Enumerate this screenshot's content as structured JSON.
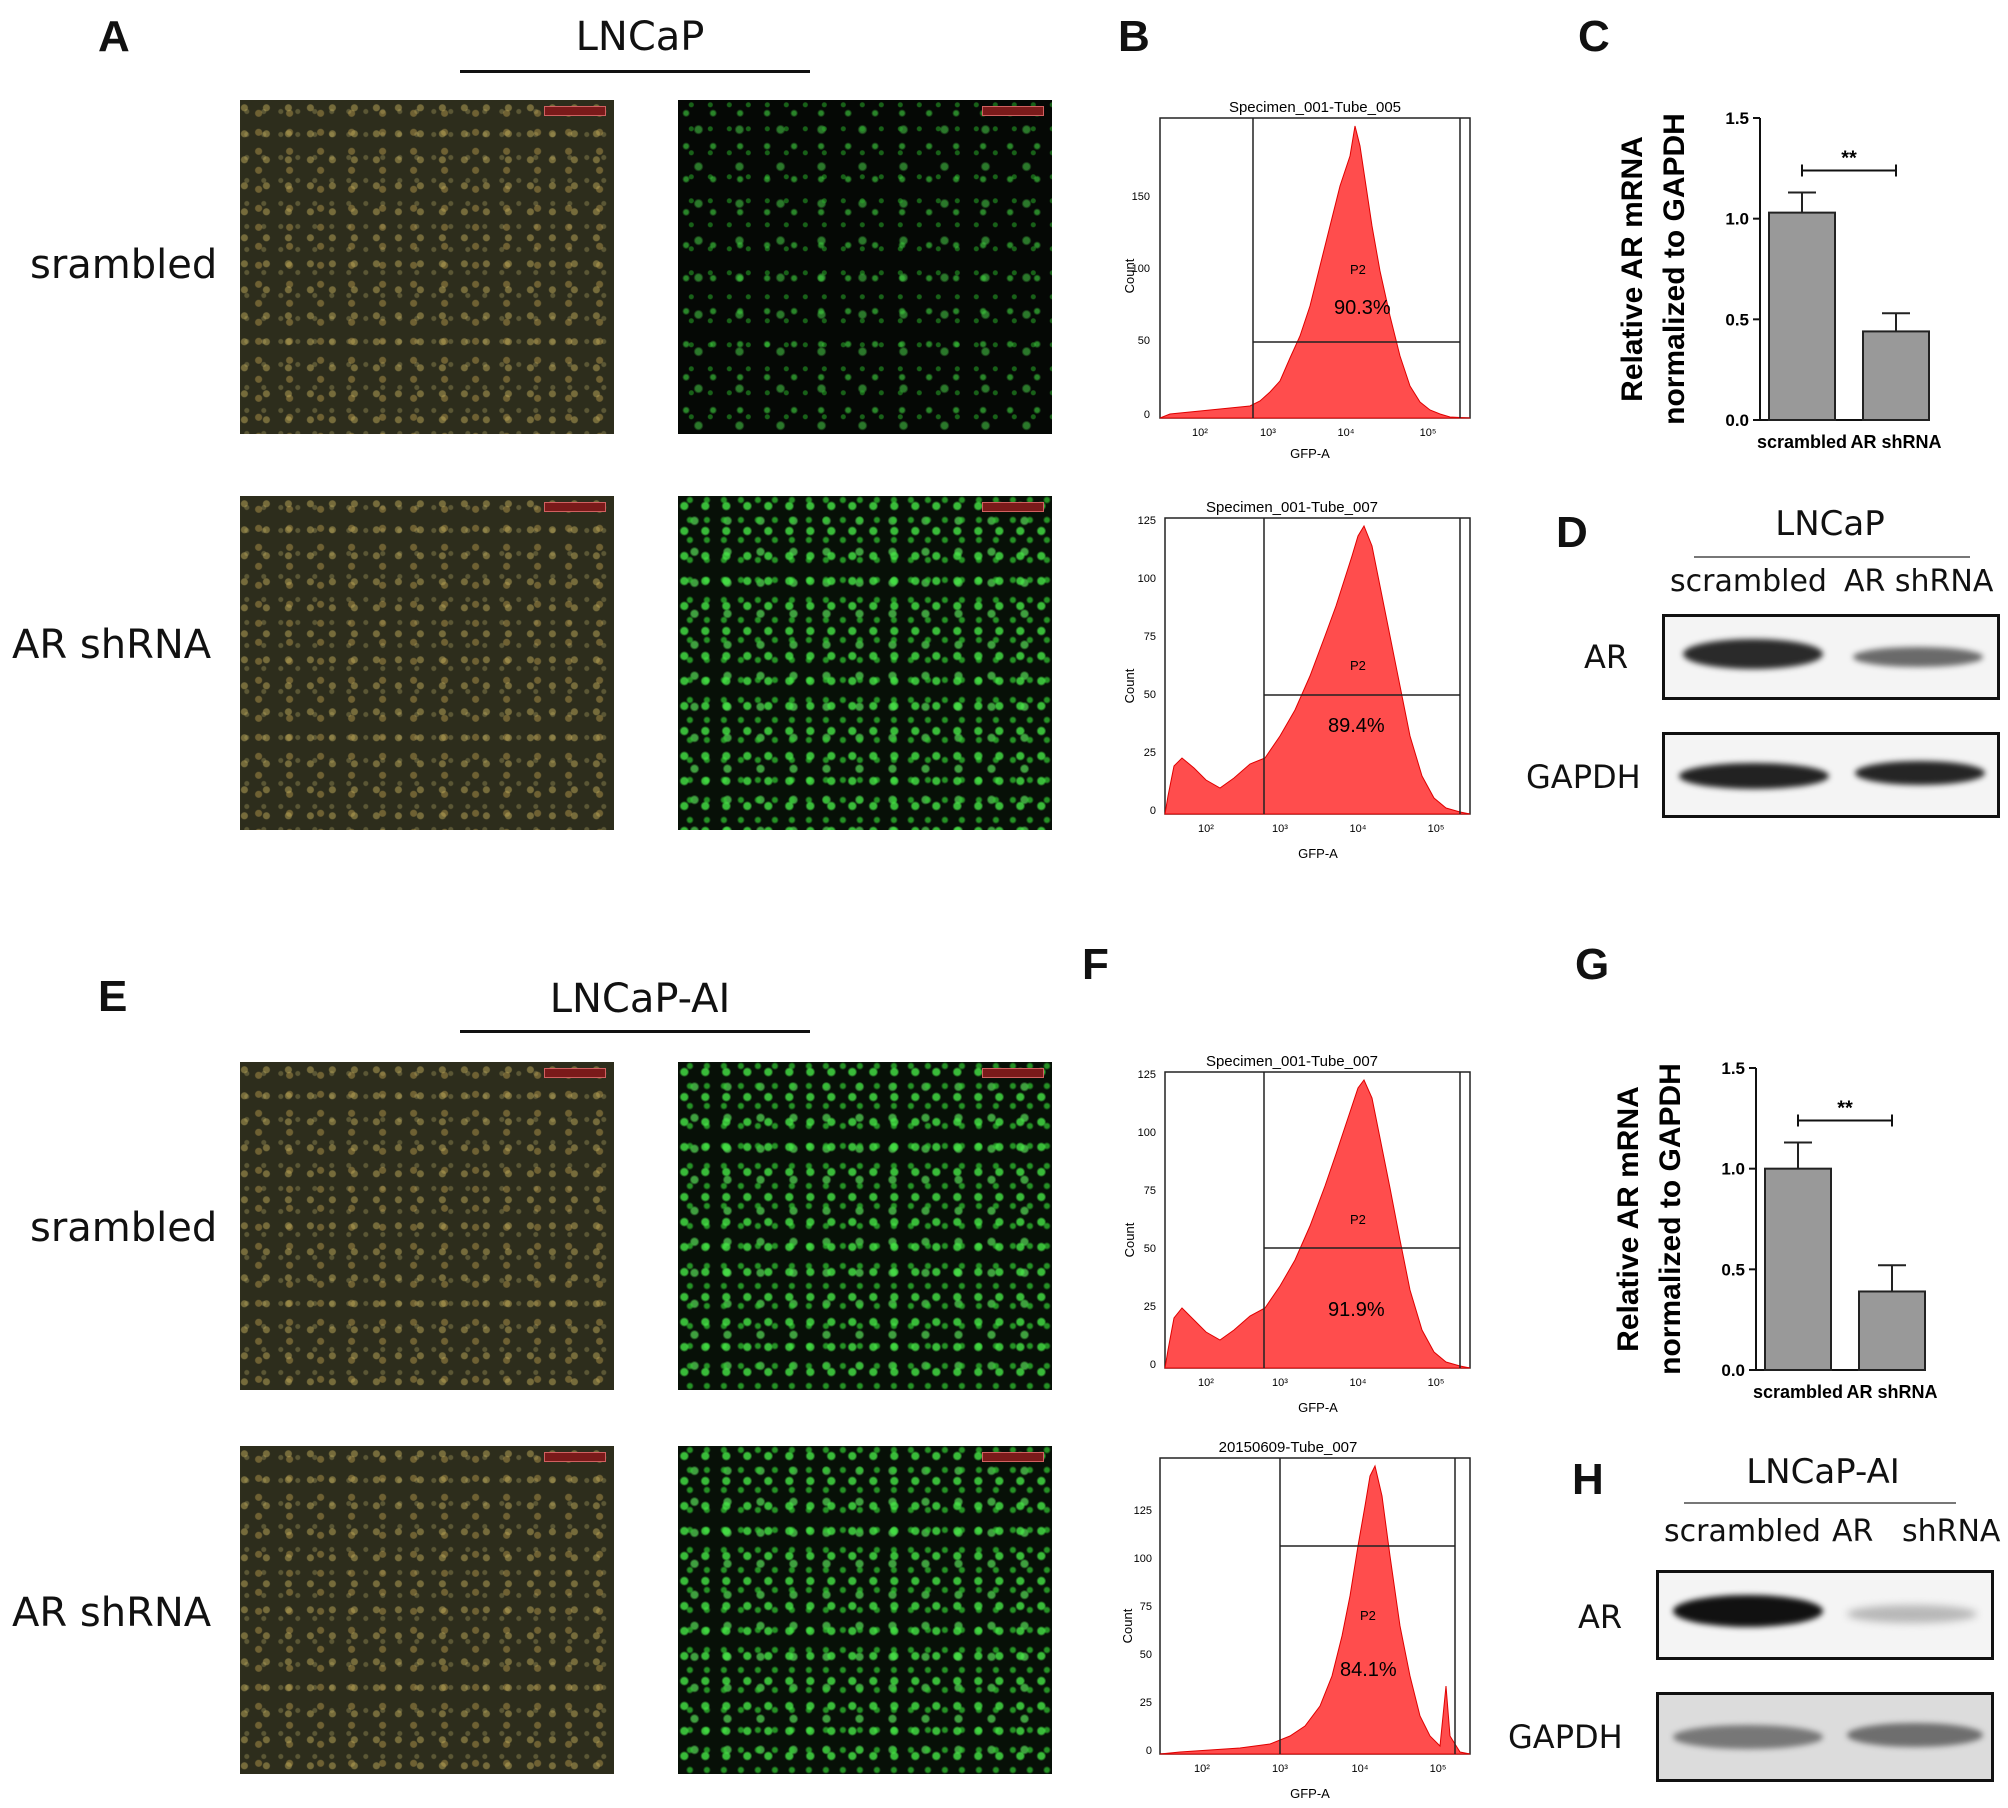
{
  "panel_labels": [
    "A",
    "B",
    "C",
    "D",
    "E",
    "F",
    "G",
    "H"
  ],
  "top": {
    "cell_line": "LNCaP",
    "rows": [
      "srambled",
      "AR shRNA"
    ],
    "flow": [
      {
        "title": "Specimen_001-Tube_005",
        "gate": "P2",
        "percent": "90.3%",
        "xlabel": "GFP-A",
        "ylabel": "Count",
        "yticks": [
          "0",
          "50",
          "100",
          "150"
        ],
        "xticks": [
          "10²",
          "10³",
          "10⁴",
          "10⁵"
        ]
      },
      {
        "title": "Specimen_001-Tube_007",
        "gate": "P2",
        "percent": "89.4%",
        "xlabel": "GFP-A",
        "ylabel": "Count",
        "yticks": [
          "0",
          "25",
          "50",
          "75",
          "100",
          "125"
        ],
        "xticks": [
          "10²",
          "10³",
          "10⁴",
          "10⁵"
        ]
      }
    ],
    "western": {
      "cell_line": "LNCaP",
      "lanes": [
        "scrambled",
        "AR shRNA"
      ],
      "proteins": [
        "AR",
        "GAPDH"
      ]
    }
  },
  "bottom": {
    "cell_line": "LNCaP-AI",
    "rows": [
      "srambled",
      "AR shRNA"
    ],
    "flow": [
      {
        "title": "Specimen_001-Tube_007",
        "gate": "P2",
        "percent": "91.9%",
        "xlabel": "GFP-A",
        "ylabel": "Count",
        "yticks": [
          "0",
          "25",
          "50",
          "75",
          "100",
          "125"
        ],
        "xticks": [
          "10²",
          "10³",
          "10⁴",
          "10⁵"
        ]
      },
      {
        "title": "20150609-Tube_007",
        "gate": "P2",
        "percent": "84.1%",
        "xlabel": "GFP-A",
        "ylabel": "Count",
        "yticks": [
          "0",
          "25",
          "50",
          "75",
          "100",
          "125"
        ],
        "xticks": [
          "10²",
          "10³",
          "10⁴",
          "10⁵"
        ]
      }
    ],
    "western": {
      "cell_line": "LNCaP-AI",
      "lanes": [
        "scrambled",
        "AR   shRNA"
      ],
      "proteins": [
        "AR",
        "GAPDH"
      ]
    }
  },
  "chart_data": [
    {
      "type": "bar",
      "panel": "C",
      "categories": [
        "scrambled",
        "AR shRNA"
      ],
      "values": [
        1.03,
        0.44
      ],
      "errors": [
        0.1,
        0.09
      ],
      "ylabel": "Relative AR mRNA\nnormalized to GAPDH",
      "yticks": [
        "0.0",
        "0.5",
        "1.0",
        "1.5"
      ],
      "ylim": [
        0,
        1.5
      ],
      "significance": "**",
      "bar_color": "#999999"
    },
    {
      "type": "bar",
      "panel": "G",
      "categories": [
        "scrambled",
        "AR shRNA"
      ],
      "values": [
        1.0,
        0.39
      ],
      "errors": [
        0.13,
        0.13
      ],
      "ylabel": "Relative AR mRNA\nnormalized to GAPDH",
      "yticks": [
        "0.0",
        "0.5",
        "1.0",
        "1.5"
      ],
      "ylim": [
        0,
        1.5
      ],
      "significance": "**",
      "bar_color": "#999999"
    }
  ]
}
